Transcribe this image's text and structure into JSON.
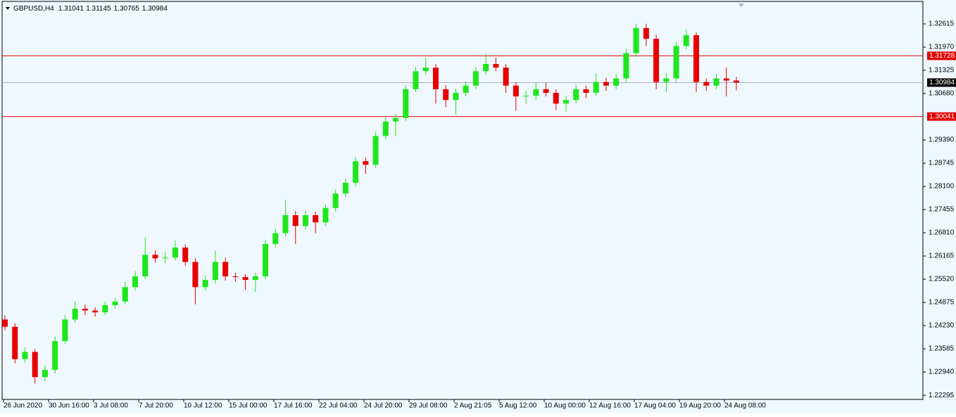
{
  "chart_data": {
    "type": "candlestick",
    "title": "GBPUSD,H4",
    "up_color": "#1ee61e",
    "down_color": "#e60000",
    "ohlc": [
      [
        1.244,
        1.2452,
        1.241,
        1.242
      ],
      [
        1.242,
        1.243,
        1.2318,
        1.233
      ],
      [
        1.233,
        1.2362,
        1.232,
        1.235
      ],
      [
        1.235,
        1.2358,
        1.2262,
        1.228
      ],
      [
        1.228,
        1.2312,
        1.2268,
        1.23
      ],
      [
        1.23,
        1.2392,
        1.229,
        1.238
      ],
      [
        1.238,
        1.2452,
        1.2372,
        1.244
      ],
      [
        1.244,
        1.2492,
        1.2432,
        1.247
      ],
      [
        1.247,
        1.2482,
        1.2452,
        1.2465
      ],
      [
        1.2465,
        1.2474,
        1.2448,
        1.246
      ],
      [
        1.246,
        1.249,
        1.2452,
        1.248
      ],
      [
        1.248,
        1.25,
        1.247,
        1.249
      ],
      [
        1.249,
        1.2545,
        1.2482,
        1.253
      ],
      [
        1.253,
        1.2575,
        1.252,
        1.256
      ],
      [
        1.256,
        1.2668,
        1.2552,
        1.262
      ],
      [
        1.262,
        1.2632,
        1.2598,
        1.261
      ],
      [
        1.261,
        1.2628,
        1.2596,
        1.2612
      ],
      [
        1.2612,
        1.266,
        1.2604,
        1.264
      ],
      [
        1.264,
        1.2648,
        1.259,
        1.26
      ],
      [
        1.26,
        1.261,
        1.2482,
        1.253
      ],
      [
        1.253,
        1.2562,
        1.252,
        1.255
      ],
      [
        1.255,
        1.2632,
        1.254,
        1.26
      ],
      [
        1.26,
        1.2612,
        1.2548,
        1.256
      ],
      [
        1.256,
        1.257,
        1.2545,
        1.2558
      ],
      [
        1.2558,
        1.2566,
        1.2522,
        1.255
      ],
      [
        1.255,
        1.257,
        1.2516,
        1.256
      ],
      [
        1.256,
        1.2662,
        1.2552,
        1.265
      ],
      [
        1.265,
        1.2692,
        1.264,
        1.268
      ],
      [
        1.268,
        1.2772,
        1.267,
        1.273
      ],
      [
        1.273,
        1.2742,
        1.265,
        1.27
      ],
      [
        1.27,
        1.2742,
        1.269,
        1.273
      ],
      [
        1.273,
        1.274,
        1.268,
        1.271
      ],
      [
        1.271,
        1.276,
        1.27,
        1.275
      ],
      [
        1.275,
        1.2802,
        1.274,
        1.279
      ],
      [
        1.279,
        1.2832,
        1.278,
        1.282
      ],
      [
        1.282,
        1.2892,
        1.281,
        1.288
      ],
      [
        1.288,
        1.289,
        1.2845,
        1.287
      ],
      [
        1.287,
        1.2962,
        1.2862,
        1.295
      ],
      [
        1.295,
        1.3002,
        1.294,
        1.299
      ],
      [
        1.299,
        1.3012,
        1.295,
        1.3
      ],
      [
        1.3,
        1.3092,
        1.2992,
        1.308
      ],
      [
        1.308,
        1.3142,
        1.3072,
        1.313
      ],
      [
        1.313,
        1.3168,
        1.312,
        1.314
      ],
      [
        1.314,
        1.315,
        1.304,
        1.308
      ],
      [
        1.308,
        1.3092,
        1.303,
        1.305
      ],
      [
        1.305,
        1.3082,
        1.301,
        1.307
      ],
      [
        1.307,
        1.3102,
        1.306,
        1.309
      ],
      [
        1.309,
        1.3142,
        1.308,
        1.313
      ],
      [
        1.313,
        1.3178,
        1.312,
        1.315
      ],
      [
        1.315,
        1.3168,
        1.313,
        1.314
      ],
      [
        1.314,
        1.315,
        1.307,
        1.309
      ],
      [
        1.309,
        1.31,
        1.302,
        1.306
      ],
      [
        1.306,
        1.3078,
        1.304,
        1.3062
      ],
      [
        1.3062,
        1.31,
        1.305,
        1.308
      ],
      [
        1.308,
        1.3098,
        1.306,
        1.307
      ],
      [
        1.307,
        1.308,
        1.3022,
        1.304
      ],
      [
        1.304,
        1.3062,
        1.3018,
        1.305
      ],
      [
        1.305,
        1.3092,
        1.304,
        1.308
      ],
      [
        1.308,
        1.309,
        1.3055,
        1.307
      ],
      [
        1.307,
        1.3125,
        1.3062,
        1.31
      ],
      [
        1.31,
        1.3112,
        1.3075,
        1.309
      ],
      [
        1.309,
        1.3122,
        1.308,
        1.311
      ],
      [
        1.311,
        1.3192,
        1.31,
        1.318
      ],
      [
        1.318,
        1.3262,
        1.317,
        1.325
      ],
      [
        1.325,
        1.3262,
        1.32,
        1.322
      ],
      [
        1.322,
        1.3232,
        1.308,
        1.31
      ],
      [
        1.31,
        1.3125,
        1.3072,
        1.311
      ],
      [
        1.311,
        1.3212,
        1.31,
        1.32
      ],
      [
        1.32,
        1.3245,
        1.319,
        1.323
      ],
      [
        1.323,
        1.3238,
        1.3072,
        1.31
      ],
      [
        1.31,
        1.311,
        1.3075,
        1.309
      ],
      [
        1.309,
        1.3122,
        1.308,
        1.311
      ],
      [
        1.311,
        1.314,
        1.306,
        1.31041
      ],
      [
        1.31041,
        1.31145,
        1.30765,
        1.30984
      ]
    ],
    "ylim": [
      1.2218,
      1.3324
    ],
    "yticks": [
      1.32615,
      {
        "value": 1.3197,
        "label": "1.31970"
      },
      1.31325,
      {
        "value": 1.3068,
        "label": "1.30680"
      },
      {
        "value": 1.2939,
        "label": "1.29390"
      },
      1.28745,
      {
        "value": 1.281,
        "label": "1.28100"
      },
      1.27455,
      {
        "value": 1.2681,
        "label": "1.26810"
      },
      1.26165,
      {
        "value": 1.2552,
        "label": "1.25520"
      },
      1.24875,
      {
        "value": 1.2423,
        "label": "1.24230"
      },
      1.23585,
      {
        "value": 1.2294,
        "label": "1.22940"
      },
      1.22295
    ],
    "levels": [
      {
        "value": 1.31728,
        "color": "#e00000"
      },
      {
        "value": 1.30041,
        "color": "#e00000"
      }
    ],
    "current_line_color": "#a8b0c0",
    "xlabels": [
      "26 Jun 2020",
      "30 Jun 16:00",
      "3 Jul 08:00",
      "7 Jul 20:00",
      "10 Jul 12:00",
      "15 Jul 00:00",
      "17 Jul 16:00",
      "22 Jul 04:00",
      "24 Jul 20:00",
      "29 Jul 08:00",
      "2 Aug 21:05",
      "5 Aug 12:00",
      "10 Aug 00:00",
      "12 Aug 16:00",
      "17 Aug 04:00",
      "19 Aug 20:00",
      "24 Aug 08:00"
    ]
  }
}
